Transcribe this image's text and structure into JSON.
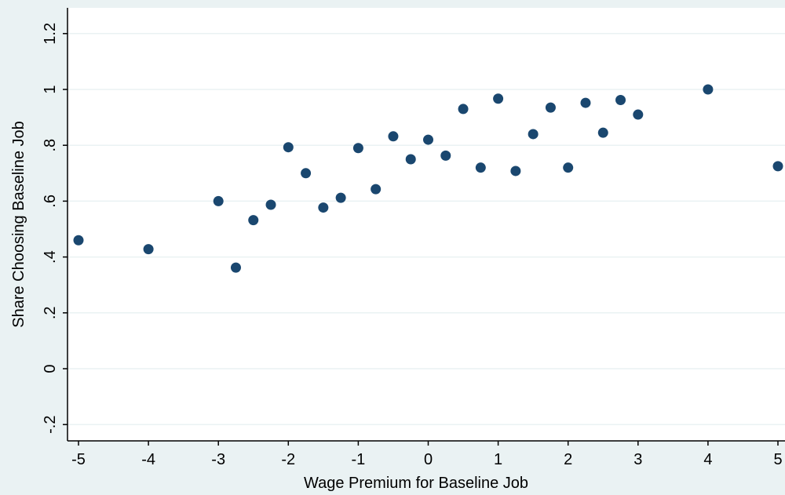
{
  "chart_data": {
    "type": "scatter",
    "title": "",
    "xlabel": "Wage Premium for Baseline Job",
    "ylabel": "Share Choosing Baseline Job",
    "xlim": [
      -5,
      5
    ],
    "ylim": [
      -0.2,
      1.2
    ],
    "x_ticks": [
      -5,
      -4,
      -3,
      -2,
      -1,
      0,
      1,
      2,
      3,
      4,
      5
    ],
    "x_tick_labels": [
      "-5",
      "-4",
      "-3",
      "-2",
      "-1",
      "0",
      "1",
      "2",
      "3",
      "4",
      "5"
    ],
    "y_ticks": [
      -0.2,
      0,
      0.2,
      0.4,
      0.6,
      0.8,
      1,
      1.2
    ],
    "y_tick_labels": [
      "-.2",
      "0",
      ".2",
      ".4",
      ".6",
      ".8",
      "1",
      "1.2"
    ],
    "grid": "horizontal",
    "colors": {
      "background": "#eaf2f3",
      "plot_area": "#ffffff",
      "marker": "#1a476f",
      "grid": "#eaf2f3",
      "axis": "#000000"
    },
    "points": [
      {
        "x": -5,
        "y": 0.46
      },
      {
        "x": -4,
        "y": 0.428
      },
      {
        "x": -3,
        "y": 0.6
      },
      {
        "x": -2.75,
        "y": 0.362
      },
      {
        "x": -2.5,
        "y": 0.532
      },
      {
        "x": -2.25,
        "y": 0.587
      },
      {
        "x": -2,
        "y": 0.793
      },
      {
        "x": -1.75,
        "y": 0.7
      },
      {
        "x": -1.5,
        "y": 0.577
      },
      {
        "x": -1.25,
        "y": 0.612
      },
      {
        "x": -1,
        "y": 0.79
      },
      {
        "x": -0.75,
        "y": 0.643
      },
      {
        "x": -0.5,
        "y": 0.832
      },
      {
        "x": -0.25,
        "y": 0.75
      },
      {
        "x": 0,
        "y": 0.82
      },
      {
        "x": 0.25,
        "y": 0.763
      },
      {
        "x": 0.5,
        "y": 0.93
      },
      {
        "x": 0.75,
        "y": 0.72
      },
      {
        "x": 1,
        "y": 0.967
      },
      {
        "x": 1.25,
        "y": 0.708
      },
      {
        "x": 1.5,
        "y": 0.84
      },
      {
        "x": 1.75,
        "y": 0.935
      },
      {
        "x": 2,
        "y": 0.72
      },
      {
        "x": 2.25,
        "y": 0.952
      },
      {
        "x": 2.5,
        "y": 0.845
      },
      {
        "x": 2.75,
        "y": 0.962
      },
      {
        "x": 3,
        "y": 0.91
      },
      {
        "x": 4,
        "y": 1.0
      },
      {
        "x": 5,
        "y": 0.725
      }
    ]
  }
}
